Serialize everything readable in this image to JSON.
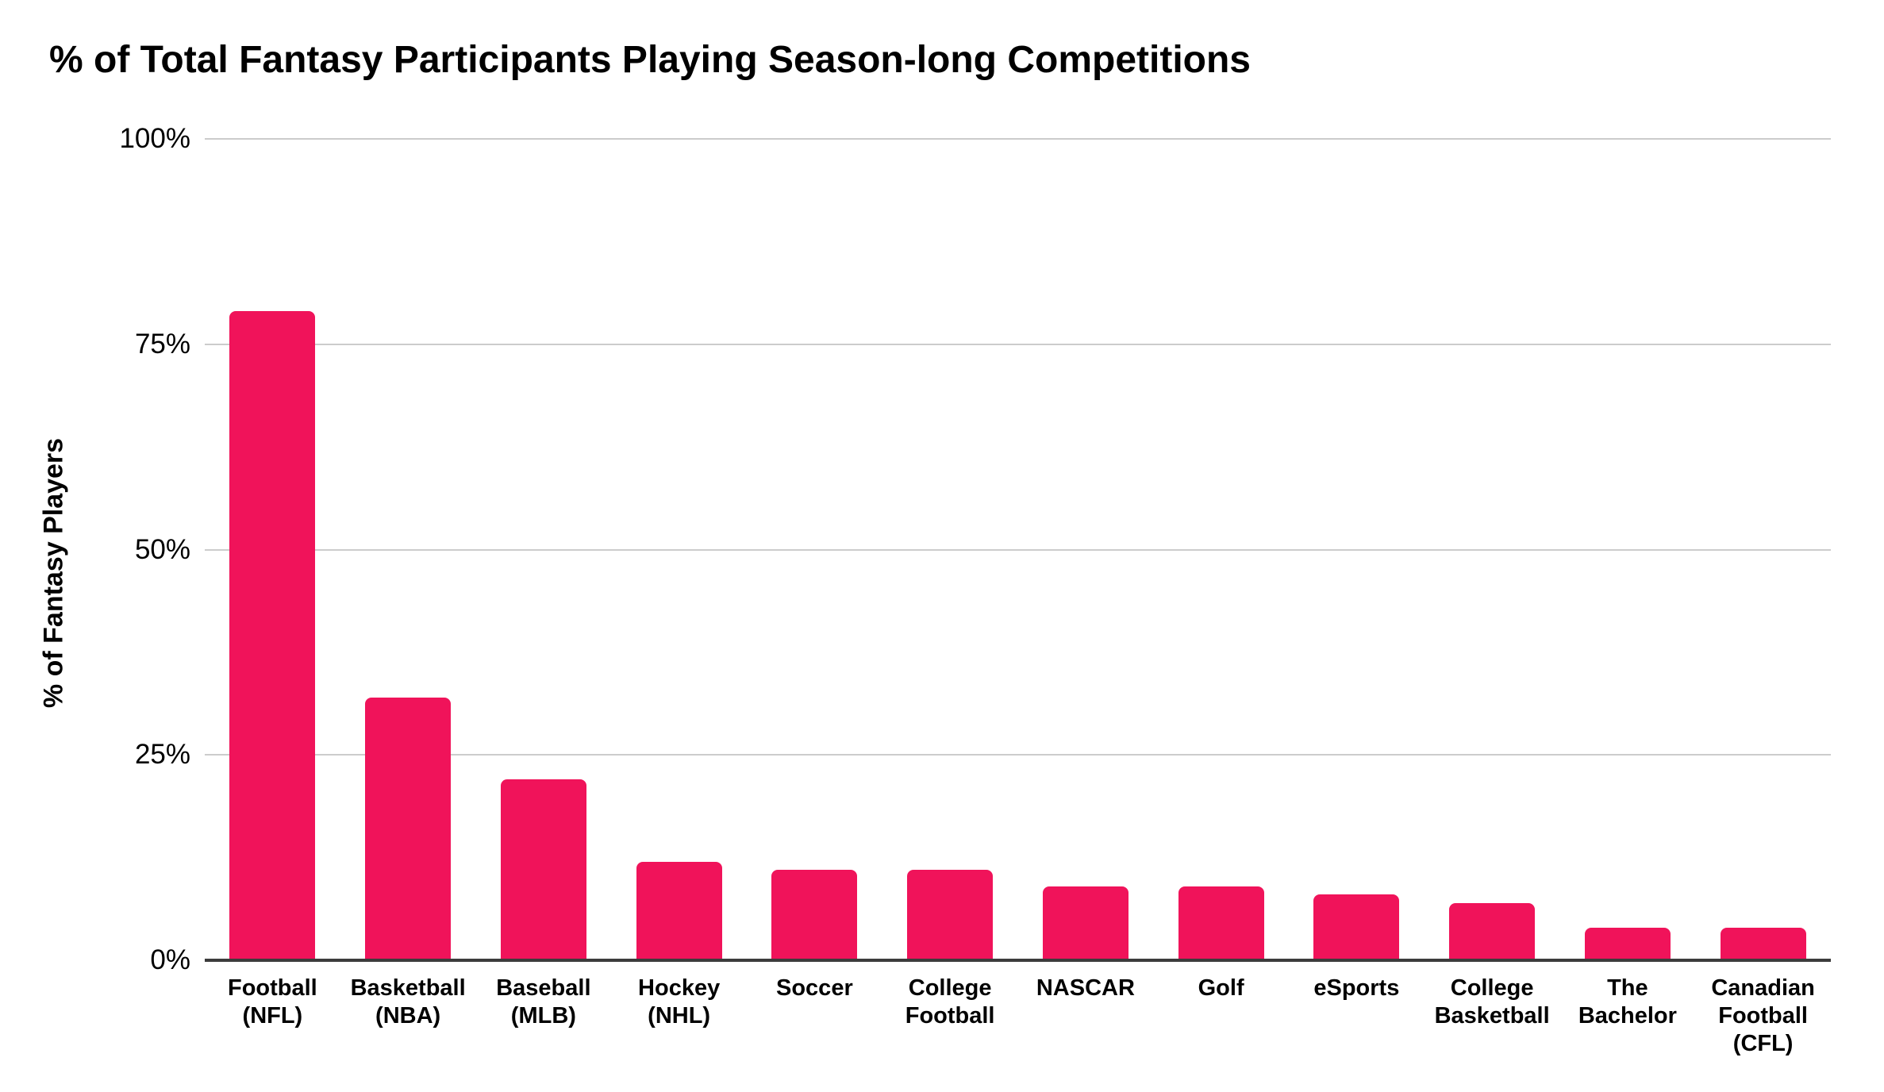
{
  "title": "% of Total Fantasy Participants Playing Season-long Competitions",
  "chart_data": {
    "type": "bar",
    "title": "% of Total Fantasy Participants Playing Season-long Competitions",
    "xlabel": "",
    "ylabel": "% of Fantasy Players",
    "ylim": [
      0,
      100
    ],
    "grid": "horizontal-only",
    "legend": "none",
    "bar_color": "#F0135A",
    "gridline_color": "#CCCCCC",
    "axis_line_color": "#3C3C3C",
    "text_color": "#000000",
    "background_color": "#FFFFFF",
    "categories": [
      "Football (NFL)",
      "Basketball (NBA)",
      "Baseball (MLB)",
      "Hockey (NHL)",
      "Soccer",
      "College Football",
      "NASCAR",
      "Golf",
      "eSports",
      "College Basketball",
      "The Bachelor",
      "Canadian Football (CFL)"
    ],
    "category_lines": [
      [
        "Football",
        "(NFL)"
      ],
      [
        "Basketball",
        "(NBA)"
      ],
      [
        "Baseball",
        "(MLB)"
      ],
      [
        "Hockey",
        "(NHL)"
      ],
      [
        "Soccer"
      ],
      [
        "College",
        "Football"
      ],
      [
        "NASCAR"
      ],
      [
        "Golf"
      ],
      [
        "eSports"
      ],
      [
        "College",
        "Basketball"
      ],
      [
        "The",
        "Bachelor"
      ],
      [
        "Canadian",
        "Football",
        "(CFL)"
      ]
    ],
    "values": [
      79,
      32,
      22,
      12,
      11,
      11,
      9,
      9,
      8,
      7,
      4,
      4
    ],
    "y_ticks": [
      {
        "label": "100%",
        "value": 100
      },
      {
        "label": "75%",
        "value": 75
      },
      {
        "label": "50%",
        "value": 50
      },
      {
        "label": "25%",
        "value": 25
      },
      {
        "label": "0%",
        "value": 0
      }
    ]
  }
}
